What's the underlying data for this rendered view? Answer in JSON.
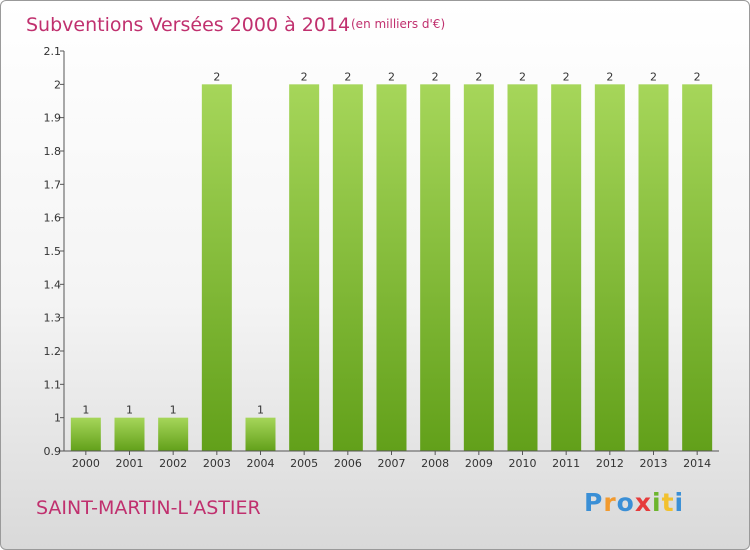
{
  "header": {
    "title": "Subventions Versées 2000 à 2014",
    "subtitle": "(en milliers d'€)"
  },
  "footer": {
    "commune": "SAINT-MARTIN-L'ASTIER",
    "logo_text": "Proxiti"
  },
  "colors": {
    "title": "#c0306e",
    "bar_light": "#a6d65a",
    "bar_dark": "#62a01a",
    "logo": [
      "#3a8fd6",
      "#f29a2e",
      "#3a8fd6",
      "#e63b3b",
      "#6cb52d",
      "#f2c12e",
      "#3a8fd6"
    ]
  },
  "chart_data": {
    "type": "bar",
    "title": "Subventions Versées 2000 à 2014",
    "subtitle": "(en milliers d'€)",
    "categories": [
      "2000",
      "2001",
      "2002",
      "2003",
      "2004",
      "2005",
      "2006",
      "2007",
      "2008",
      "2009",
      "2010",
      "2011",
      "2012",
      "2013",
      "2014"
    ],
    "values": [
      1,
      1,
      1,
      2,
      1,
      2,
      2,
      2,
      2,
      2,
      2,
      2,
      2,
      2,
      2
    ],
    "data_labels": [
      "1",
      "1",
      "1",
      "2",
      "1",
      "2",
      "2",
      "2",
      "2",
      "2",
      "2",
      "2",
      "2",
      "2",
      "2"
    ],
    "ylim": [
      0.9,
      2.1
    ],
    "yticks": [
      "0.9",
      "1",
      "1.1",
      "1.2",
      "1.3",
      "1.4",
      "1.5",
      "1.6",
      "1.7",
      "1.8",
      "1.9",
      "2",
      "2.1"
    ],
    "grid": false,
    "legend": "none"
  }
}
